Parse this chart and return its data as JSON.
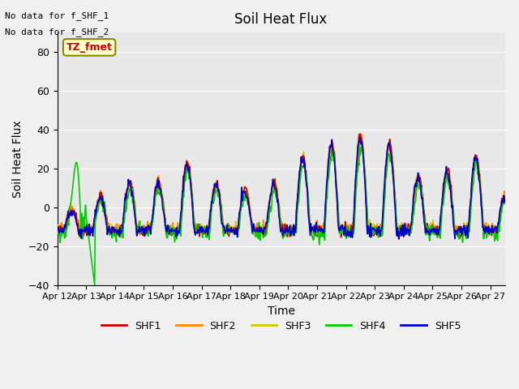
{
  "title": "Soil Heat Flux",
  "ylabel": "Soil Heat Flux",
  "xlabel": "Time",
  "xlim_days": [
    0,
    15
  ],
  "ylim": [
    -40,
    90
  ],
  "yticks": [
    -40,
    -20,
    0,
    20,
    40,
    60,
    80
  ],
  "xtick_labels": [
    "Apr 12",
    "Apr 13",
    "Apr 14",
    "Apr 15",
    "Apr 16",
    "Apr 17",
    "Apr 18",
    "Apr 19",
    "Apr 20",
    "Apr 21",
    "Apr 22",
    "Apr 23",
    "Apr 24",
    "Apr 25",
    "Apr 26",
    "Apr 27"
  ],
  "no_data_text": [
    "No data for f_SHF_1",
    "No data for f_SHF_2"
  ],
  "tz_label": "TZ_fmet",
  "colors": {
    "SHF1": "#cc0000",
    "SHF2": "#ff8800",
    "SHF3": "#cccc00",
    "SHF4": "#00cc00",
    "SHF5": "#0000cc"
  },
  "legend_labels": [
    "SHF1",
    "SHF2",
    "SHF3",
    "SHF4",
    "SHF5"
  ],
  "bg_color": "#e8e8e8",
  "plot_bg_color": "#e8e8e8",
  "line_width": 1.2
}
